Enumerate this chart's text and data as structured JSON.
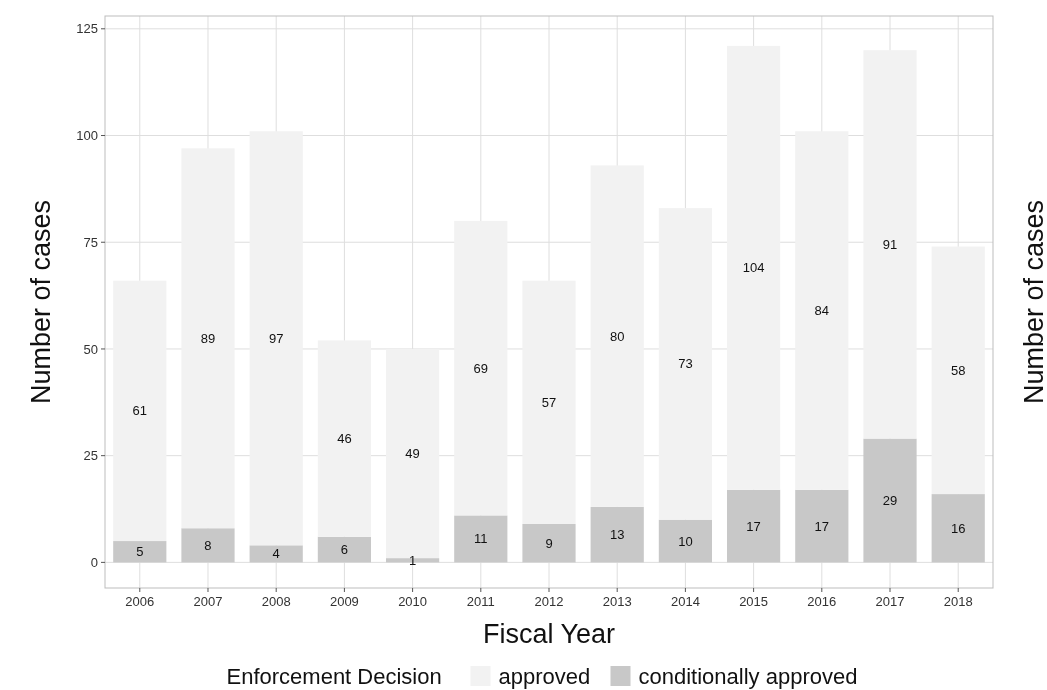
{
  "chart_data": {
    "type": "bar",
    "stacked": true,
    "xlabel": "Fiscal Year",
    "ylabel": "Number of cases",
    "y2label": "Number of cases",
    "legend_title": "Enforcement Decision",
    "categories": [
      "2006",
      "2007",
      "2008",
      "2009",
      "2010",
      "2011",
      "2012",
      "2013",
      "2014",
      "2015",
      "2016",
      "2017",
      "2018"
    ],
    "series": [
      {
        "name": "conditionally approved",
        "color": "#c8c8c8",
        "values": [
          5,
          8,
          4,
          6,
          1,
          11,
          9,
          13,
          10,
          17,
          17,
          29,
          16
        ]
      },
      {
        "name": "approved",
        "color": "#f2f2f2",
        "values": [
          61,
          89,
          97,
          46,
          49,
          69,
          57,
          80,
          73,
          104,
          84,
          91,
          58
        ]
      }
    ],
    "ylim": [
      -6,
      128
    ],
    "yticks": [
      0,
      25,
      50,
      75,
      100,
      125
    ],
    "grid": true,
    "legend": "bottom",
    "data_labels": true
  }
}
